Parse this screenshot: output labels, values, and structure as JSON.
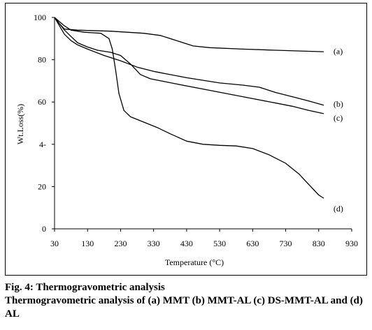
{
  "caption": {
    "figure_label": "Fig. 4:",
    "figure_title": "Thermogravometric analysis",
    "description": "Thermogravometric analysis of (a) MMT (b) MMT-AL (c) DS-MMT-AL and (d) AL"
  },
  "chart_data": {
    "type": "line",
    "title": "",
    "xlabel": "Temperature (°C)",
    "ylabel": "Wt.Loss(%)",
    "xlim": [
      30,
      930
    ],
    "ylim": [
      0,
      100
    ],
    "x_ticks": [
      30,
      130,
      230,
      330,
      430,
      530,
      630,
      730,
      830,
      930
    ],
    "x_tick_labels": [
      "30",
      "130",
      "230",
      "330",
      "430",
      "530",
      "630",
      "730",
      "830",
      "930"
    ],
    "y_ticks": [
      0,
      20,
      40,
      60,
      80,
      100
    ],
    "y_tick_labels": [
      "0",
      "20",
      "4-",
      "60",
      "80",
      "100"
    ],
    "grid": false,
    "legend": "none",
    "line_color": "#000000",
    "series": [
      {
        "name": "(a)",
        "points": [
          [
            30,
            100
          ],
          [
            45,
            97
          ],
          [
            60,
            94.5
          ],
          [
            100,
            94
          ],
          [
            200,
            93.5
          ],
          [
            300,
            92.5
          ],
          [
            350,
            91.5
          ],
          [
            400,
            89
          ],
          [
            450,
            86.5
          ],
          [
            500,
            85.7
          ],
          [
            600,
            85
          ],
          [
            700,
            84.5
          ],
          [
            800,
            84
          ],
          [
            845,
            83.8
          ]
        ]
      },
      {
        "name": "(b)",
        "points": [
          [
            30,
            100
          ],
          [
            45,
            97
          ],
          [
            60,
            94
          ],
          [
            80,
            91
          ],
          [
            100,
            88
          ],
          [
            130,
            86
          ],
          [
            160,
            84.5
          ],
          [
            200,
            83.5
          ],
          [
            230,
            82
          ],
          [
            260,
            78
          ],
          [
            290,
            73
          ],
          [
            320,
            71
          ],
          [
            400,
            68.5
          ],
          [
            500,
            65.5
          ],
          [
            600,
            62.5
          ],
          [
            700,
            59.5
          ],
          [
            750,
            58
          ],
          [
            800,
            56
          ],
          [
            845,
            54.5
          ]
        ]
      },
      {
        "name": "(c)",
        "points": [
          [
            30,
            100
          ],
          [
            45,
            96
          ],
          [
            60,
            92
          ],
          [
            80,
            89
          ],
          [
            100,
            87
          ],
          [
            130,
            85
          ],
          [
            180,
            82
          ],
          [
            230,
            79.5
          ],
          [
            280,
            76.5
          ],
          [
            330,
            74.5
          ],
          [
            430,
            71.5
          ],
          [
            530,
            69
          ],
          [
            600,
            68
          ],
          [
            650,
            67
          ],
          [
            700,
            64.5
          ],
          [
            750,
            62.5
          ],
          [
            800,
            60.5
          ],
          [
            845,
            58.5
          ]
        ]
      },
      {
        "name": "(d)",
        "points": [
          [
            30,
            100
          ],
          [
            45,
            98
          ],
          [
            60,
            96
          ],
          [
            80,
            94
          ],
          [
            120,
            93
          ],
          [
            170,
            92.5
          ],
          [
            195,
            90
          ],
          [
            205,
            85
          ],
          [
            215,
            75
          ],
          [
            225,
            64
          ],
          [
            240,
            56
          ],
          [
            260,
            53
          ],
          [
            300,
            50.5
          ],
          [
            340,
            48
          ],
          [
            380,
            45
          ],
          [
            430,
            41.5
          ],
          [
            480,
            40
          ],
          [
            530,
            39.5
          ],
          [
            580,
            39.2
          ],
          [
            630,
            38
          ],
          [
            680,
            35
          ],
          [
            730,
            31
          ],
          [
            770,
            26
          ],
          [
            800,
            21
          ],
          [
            830,
            16
          ],
          [
            845,
            14.5
          ]
        ]
      }
    ],
    "label_positions": {
      "(a)": [
        843,
        84
      ],
      "(b)": [
        843,
        59
      ],
      "(c)": [
        843,
        52.5
      ],
      "(d)": [
        843,
        9.5
      ]
    }
  }
}
